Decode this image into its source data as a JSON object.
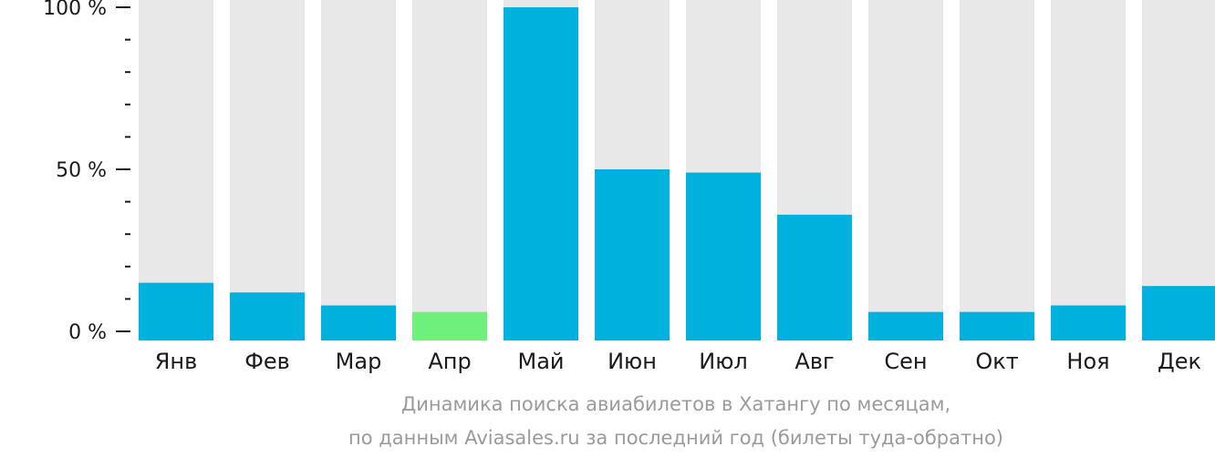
{
  "chart_data": {
    "type": "bar",
    "categories": [
      "Янв",
      "Фев",
      "Мар",
      "Апр",
      "Май",
      "Июн",
      "Июл",
      "Авг",
      "Сен",
      "Окт",
      "Ноя",
      "Дек"
    ],
    "values": [
      15,
      12,
      8,
      6,
      100,
      50,
      49,
      36,
      6,
      6,
      8,
      14
    ],
    "highlight_index": 3,
    "ylim": [
      0,
      100
    ],
    "y_ticks": [
      {
        "value": 0,
        "label": "0 %"
      },
      {
        "value": 50,
        "label": "50 %"
      },
      {
        "value": 100,
        "label": "100 %"
      }
    ],
    "minor_tick_step": 10,
    "caption_line1": "Динамика поиска авиабилетов в Хатангу по месяцам,",
    "caption_line2": "по данным Aviasales.ru за последний год (билеты туда-обратно)",
    "colors": {
      "bar": "#00b0dd",
      "highlight": "#6ff07c",
      "track": "#e8e8e8",
      "axis": "#1a1a1a",
      "caption": "#9a9a9a"
    }
  }
}
